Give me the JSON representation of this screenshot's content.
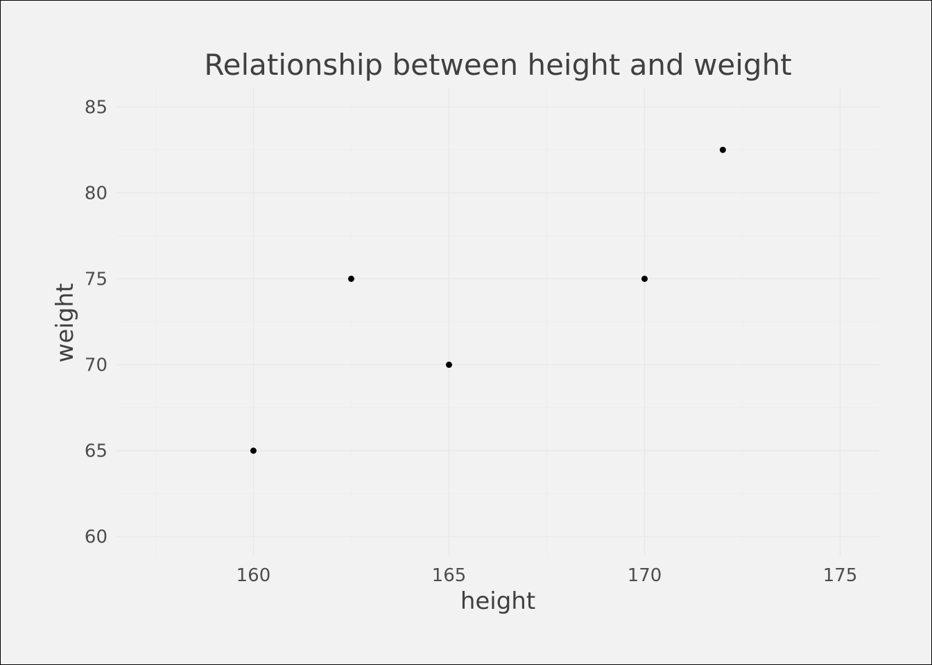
{
  "chart_data": {
    "type": "scatter",
    "title": "Relationship between height and weight",
    "xlabel": "height",
    "ylabel": "weight",
    "xlim": [
      156.5,
      176
    ],
    "ylim": [
      58.9,
      86.1
    ],
    "x_ticks": [
      160,
      165,
      170,
      175
    ],
    "y_ticks": [
      60,
      65,
      70,
      75,
      80,
      85
    ],
    "x_tick_labels": [
      "160",
      "165",
      "170",
      "175"
    ],
    "y_tick_labels": [
      "60",
      "65",
      "70",
      "75",
      "80",
      "85"
    ],
    "grid": true,
    "legend": "none",
    "point_color": "#000000",
    "background_color": "#f2f2f2",
    "points": [
      {
        "x": 160,
        "y": 65
      },
      {
        "x": 162.5,
        "y": 75
      },
      {
        "x": 165,
        "y": 70
      },
      {
        "x": 170,
        "y": 75
      },
      {
        "x": 172,
        "y": 82.5
      }
    ]
  }
}
